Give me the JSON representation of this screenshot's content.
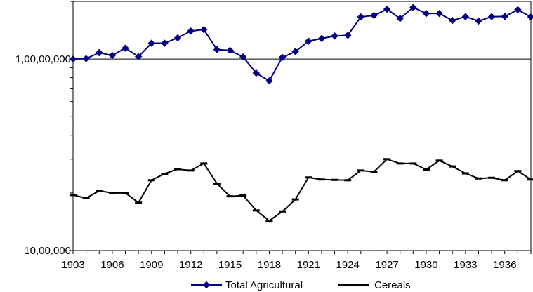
{
  "chart_data": {
    "type": "line",
    "title": "",
    "xlabel": "",
    "ylabel": "",
    "y_scale": "log",
    "ylim": [
      1000000,
      20000000
    ],
    "y_ticks": [
      {
        "value": 1000000,
        "label": "10,00,000"
      },
      {
        "value": 10000000,
        "label": "1,00,00,000"
      }
    ],
    "x_ticks": [
      "1903",
      "1906",
      "1909",
      "1912",
      "1915",
      "1918",
      "1921",
      "1924",
      "1927",
      "1930",
      "1933",
      "1936"
    ],
    "x": [
      1903,
      1904,
      1905,
      1906,
      1907,
      1908,
      1909,
      1910,
      1911,
      1912,
      1913,
      1914,
      1915,
      1916,
      1917,
      1918,
      1919,
      1920,
      1921,
      1922,
      1923,
      1924,
      1925,
      1926,
      1927,
      1928,
      1929,
      1930,
      1931,
      1932,
      1933,
      1934,
      1935,
      1936,
      1937,
      1938
    ],
    "series": [
      {
        "name": "Total Agricultural",
        "color": "#000080",
        "marker": "diamond",
        "values": [
          10000000,
          10050000,
          10800000,
          10450000,
          11400000,
          10300000,
          12100000,
          12100000,
          12900000,
          14000000,
          14250000,
          11200000,
          11100000,
          10250000,
          8450000,
          7700000,
          10200000,
          10950000,
          12400000,
          12800000,
          13200000,
          13300000,
          16600000,
          16900000,
          18200000,
          16300000,
          18600000,
          17300000,
          17300000,
          15900000,
          16650000,
          15800000,
          16650000,
          16700000,
          18100000,
          16600000
        ]
      },
      {
        "name": "Cereals",
        "color": "#000000",
        "marker": "dash",
        "values": [
          1950000,
          1880000,
          2050000,
          2000000,
          2000000,
          1780000,
          2330000,
          2520000,
          2660000,
          2620000,
          2850000,
          2240000,
          1920000,
          1940000,
          1620000,
          1430000,
          1600000,
          1850000,
          2410000,
          2350000,
          2340000,
          2330000,
          2620000,
          2580000,
          3000000,
          2850000,
          2850000,
          2650000,
          2950000,
          2750000,
          2530000,
          2380000,
          2400000,
          2330000,
          2600000,
          2350000
        ]
      }
    ],
    "grid": "horizontal line at 1,00,00,000 only",
    "legend_position": "bottom"
  }
}
